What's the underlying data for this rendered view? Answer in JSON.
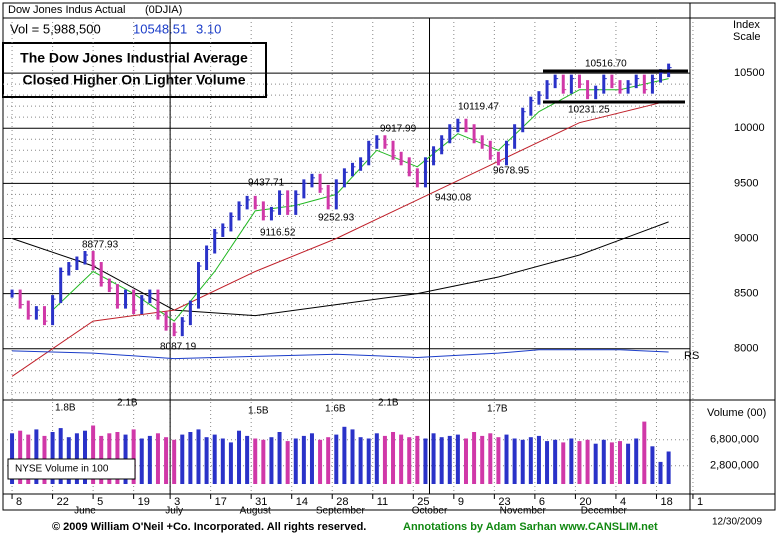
{
  "header": {
    "name": "Dow Jones Indus Actual",
    "symbol": "(0DJIA)",
    "volume": "Vol = 5,988,500",
    "price": "10548.51",
    "change": "3.10",
    "scale_label": [
      "Index",
      "Scale"
    ]
  },
  "headline": [
    "The Dow Jones Industrial Average",
    "Closed Higher On Lighter Volume"
  ],
  "chart_data": {
    "type": "price-bars",
    "x": [
      0,
      2,
      4,
      6,
      8,
      10,
      12,
      14,
      16,
      18,
      20,
      22,
      24,
      26,
      28,
      30,
      32,
      34,
      36,
      38,
      40,
      42,
      44,
      46,
      48,
      50,
      52,
      54,
      56,
      58,
      60,
      62,
      64,
      66,
      68,
      70,
      72,
      74,
      76,
      78,
      80,
      82,
      84,
      86,
      88,
      90,
      92,
      94,
      96,
      98,
      100,
      102,
      104,
      106,
      108,
      110,
      112,
      114,
      116,
      118,
      120,
      122,
      124,
      126,
      128,
      130,
      132,
      134,
      136,
      138,
      140,
      142,
      144,
      146,
      148,
      150,
      152,
      154,
      156,
      158,
      160,
      162
    ],
    "values": [
      8500,
      8400,
      8300,
      8350,
      8250,
      8450,
      8700,
      8750,
      8800,
      8850,
      8750,
      8600,
      8550,
      8400,
      8500,
      8350,
      8450,
      8500,
      8300,
      8200,
      8150,
      8250,
      8400,
      8750,
      8900,
      9050,
      9100,
      9200,
      9300,
      9350,
      9300,
      9200,
      9250,
      9400,
      9250,
      9400,
      9500,
      9550,
      9450,
      9300,
      9500,
      9600,
      9650,
      9700,
      9850,
      9900,
      9850,
      9750,
      9700,
      9600,
      9500,
      9700,
      9800,
      9900,
      10000,
      10050,
      10000,
      9900,
      9850,
      9750,
      9700,
      9850,
      10000,
      10150,
      10250,
      10300,
      10400,
      10450,
      10350,
      10450,
      10400,
      10300,
      10350,
      10450,
      10400,
      10350,
      10400,
      10450,
      10350,
      10450,
      10500,
      10550
    ],
    "volume": [
      7800000,
      8200000,
      7600000,
      8400000,
      7400000,
      8000000,
      8600000,
      7200000,
      7800000,
      8200000,
      9000000,
      7400000,
      7800000,
      8000000,
      7600000,
      8400000,
      7000000,
      7400000,
      7800000,
      7200000,
      6800000,
      7600000,
      8000000,
      8400000,
      7200000,
      7600000,
      7000000,
      6400000,
      8200000,
      7400000,
      7000000,
      6800000,
      7200000,
      8000000,
      6600000,
      7000000,
      7400000,
      7800000,
      6800000,
      7200000,
      7600000,
      8800000,
      8400000,
      7200000,
      7000000,
      7800000,
      7400000,
      8000000,
      7600000,
      7200000,
      7400000,
      7000000,
      7800000,
      7200000,
      7400000,
      7600000,
      7000000,
      8000000,
      7400000,
      7800000,
      7200000,
      7600000,
      7000000,
      6800000,
      7200000,
      7400000,
      6600000,
      6800000,
      6400000,
      7000000,
      6600000,
      6800000,
      6200000,
      6800000,
      6400000,
      6600000,
      6200000,
      7000000,
      9600000,
      5800000,
      3400000,
      5000000
    ],
    "ma10": {
      "x": [
        10,
        20,
        30,
        40,
        50,
        60,
        70,
        80,
        90,
        100,
        110,
        120,
        130,
        140,
        150,
        162
      ],
      "values": [
        8350,
        8700,
        8500,
        8250,
        8700,
        9250,
        9300,
        9400,
        9800,
        9650,
        9950,
        9800,
        10150,
        10350,
        10350,
        10450
      ]
    },
    "ma50": {
      "x": [
        0,
        20,
        40,
        60,
        80,
        100,
        120,
        140,
        162
      ],
      "values": [
        7750,
        8250,
        8350,
        8700,
        9000,
        9350,
        9700,
        10050,
        10250
      ]
    },
    "ma200": {
      "x": [
        0,
        20,
        40,
        60,
        80,
        100,
        120,
        140,
        162
      ],
      "values": [
        9000,
        8750,
        8350,
        8300,
        8400,
        8500,
        8650,
        8850,
        9150
      ]
    },
    "rs": {
      "x": [
        0,
        20,
        40,
        60,
        80,
        100,
        120,
        130,
        140,
        150,
        162
      ],
      "values": [
        7980,
        7960,
        7910,
        7930,
        7950,
        7920,
        7960,
        7990,
        7990,
        7990,
        7970
      ]
    },
    "xlim": [
      -1,
      169
    ],
    "ylim": [
      7580,
      11000
    ],
    "volume_ylim": [
      0,
      12000000
    ],
    "yticks": [
      10500,
      10000,
      9500,
      9000,
      8500,
      8000
    ],
    "volume_ticks": [
      {
        "value": 6800000,
        "label": "6,800,000"
      },
      {
        "value": 2800000,
        "label": "2,800,000"
      }
    ],
    "volume_label": "Volume (00)",
    "volume_note": "NYSE Volume in 100",
    "rs_label": "RS",
    "xticks": [
      {
        "value": 0,
        "label": "8"
      },
      {
        "value": 10,
        "label": "22"
      },
      {
        "value": 20,
        "label": "5"
      },
      {
        "value": 30,
        "label": "19"
      },
      {
        "value": 39,
        "label": "3"
      },
      {
        "value": 49,
        "label": "17"
      },
      {
        "value": 59,
        "label": "31"
      },
      {
        "value": 69,
        "label": "14"
      },
      {
        "value": 79,
        "label": "28"
      },
      {
        "value": 89,
        "label": "11"
      },
      {
        "value": 99,
        "label": "25"
      },
      {
        "value": 109,
        "label": "9"
      },
      {
        "value": 119,
        "label": "23"
      },
      {
        "value": 129,
        "label": "6"
      },
      {
        "value": 139,
        "label": "20"
      },
      {
        "value": 149,
        "label": "4"
      },
      {
        "value": 159,
        "label": "18"
      },
      {
        "value": 168,
        "label": "1"
      }
    ],
    "month_ticks": [
      {
        "value": 18,
        "label": "June"
      },
      {
        "value": 40,
        "label": "July"
      },
      {
        "value": 60,
        "label": "August"
      },
      {
        "value": 81,
        "label": "September"
      },
      {
        "value": 103,
        "label": "October"
      },
      {
        "value": 126,
        "label": "November"
      },
      {
        "value": 146,
        "label": "December"
      }
    ],
    "annotations": [
      "8877.93",
      "8087.19",
      "9437.71",
      "9116.52",
      "9252.93",
      "9917.99",
      "9430.08",
      "10119.47",
      "9678.95",
      "10516.70",
      "10231.25"
    ],
    "volume_annotations": [
      "1.8B",
      "2.1B",
      "1.5B",
      "1.6B",
      "2.1B",
      "1.7B"
    ]
  },
  "footer": {
    "copyright": "© 2009 William O'Neil +Co. Incorporated. All rights reserved.",
    "credit": "Annotations by Adam Sarhan www.CANSLIM.net",
    "date": "12/30/2009"
  }
}
